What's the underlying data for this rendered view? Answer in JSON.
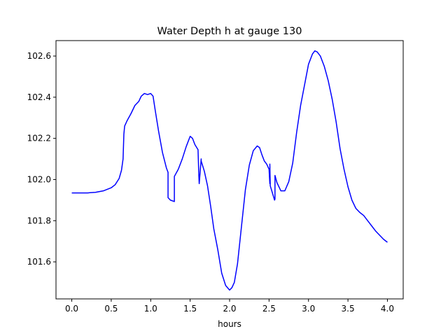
{
  "chart_data": {
    "type": "line",
    "title": "Water Depth h at gauge 130",
    "xlabel": "hours",
    "ylabel": "",
    "xlim": [
      -0.2,
      4.2
    ],
    "ylim": [
      101.42,
      102.675
    ],
    "xticks": [
      0.0,
      0.5,
      1.0,
      1.5,
      2.0,
      2.5,
      3.0,
      3.5,
      4.0
    ],
    "xtick_labels": [
      "0.0",
      "0.5",
      "1.0",
      "1.5",
      "2.0",
      "2.5",
      "3.0",
      "3.5",
      "4.0"
    ],
    "yticks": [
      101.6,
      101.8,
      102.0,
      102.2,
      102.4,
      102.6
    ],
    "ytick_labels": [
      "101.6",
      "101.8",
      "102.0",
      "102.2",
      "102.4",
      "102.6"
    ],
    "grid": false,
    "series": [
      {
        "color": "#0000ff",
        "x": [
          0.0,
          0.2,
          0.3,
          0.4,
          0.5,
          0.55,
          0.6,
          0.63,
          0.65,
          0.66,
          0.67,
          0.7,
          0.75,
          0.8,
          0.85,
          0.88,
          0.92,
          0.96,
          1.0,
          1.03,
          1.06,
          1.1,
          1.15,
          1.2,
          1.215,
          1.22,
          1.22,
          1.25,
          1.3,
          1.3,
          1.35,
          1.4,
          1.45,
          1.5,
          1.53,
          1.56,
          1.6,
          1.61,
          1.615,
          1.64,
          1.64,
          1.68,
          1.72,
          1.76,
          1.8,
          1.85,
          1.9,
          1.95,
          2.0,
          2.03,
          2.06,
          2.1,
          2.15,
          2.2,
          2.25,
          2.3,
          2.35,
          2.38,
          2.41,
          2.44,
          2.47,
          2.5,
          2.51,
          2.51,
          2.515,
          2.515,
          2.57,
          2.575,
          2.575,
          2.6,
          2.65,
          2.7,
          2.75,
          2.8,
          2.85,
          2.9,
          2.95,
          3.0,
          3.05,
          3.08,
          3.11,
          3.15,
          3.2,
          3.25,
          3.3,
          3.35,
          3.4,
          3.45,
          3.5,
          3.55,
          3.6,
          3.65,
          3.7,
          3.75,
          3.8,
          3.85,
          3.9,
          3.95,
          4.0
        ],
        "y": [
          101.935,
          101.935,
          101.938,
          101.945,
          101.96,
          101.975,
          102.005,
          102.045,
          102.1,
          102.22,
          102.26,
          102.285,
          102.32,
          102.36,
          102.38,
          102.405,
          102.418,
          102.413,
          102.418,
          102.405,
          102.33,
          102.235,
          102.13,
          102.055,
          102.04,
          102.035,
          101.912,
          101.9,
          101.893,
          102.015,
          102.05,
          102.1,
          102.16,
          102.21,
          102.2,
          102.17,
          102.145,
          102.02,
          101.98,
          102.1,
          102.09,
          102.04,
          101.97,
          101.87,
          101.76,
          101.66,
          101.545,
          101.485,
          101.463,
          101.475,
          101.5,
          101.59,
          101.77,
          101.95,
          102.07,
          102.14,
          102.163,
          102.155,
          102.12,
          102.09,
          102.075,
          102.05,
          101.98,
          102.075,
          101.98,
          101.97,
          101.9,
          101.905,
          102.02,
          101.985,
          101.945,
          101.945,
          101.99,
          102.08,
          102.23,
          102.36,
          102.46,
          102.56,
          102.61,
          102.625,
          102.62,
          102.6,
          102.55,
          102.48,
          102.39,
          102.28,
          102.15,
          102.05,
          101.965,
          101.9,
          101.86,
          101.84,
          101.825,
          101.8,
          101.775,
          101.75,
          101.73,
          101.71,
          101.695
        ]
      }
    ]
  }
}
